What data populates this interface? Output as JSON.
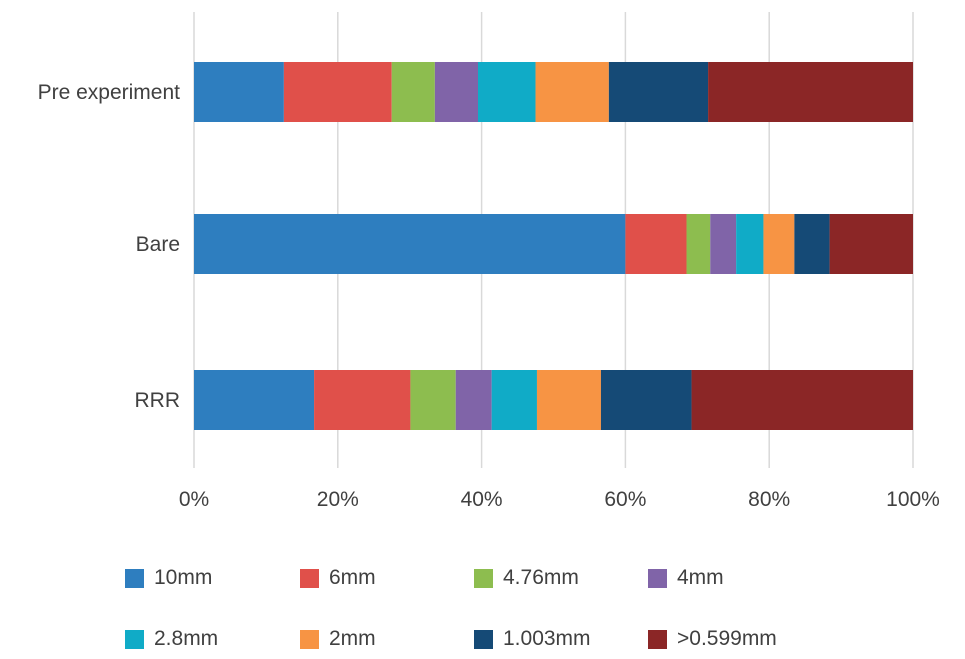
{
  "chart_data": {
    "type": "bar",
    "orientation": "horizontal",
    "stacked": "percent",
    "categories": [
      "Pre experiment",
      "Bare",
      "RRR"
    ],
    "series": [
      {
        "name": "10mm",
        "color": "#2E7EBF",
        "values": [
          12.5,
          60.0,
          16.7
        ]
      },
      {
        "name": "6mm",
        "color": "#E0504A",
        "values": [
          15.0,
          8.5,
          13.4
        ]
      },
      {
        "name": "4.76mm",
        "color": "#8DBD4F",
        "values": [
          6.0,
          3.3,
          6.3
        ]
      },
      {
        "name": "4mm",
        "color": "#8064A8",
        "values": [
          6.0,
          3.6,
          5.0
        ]
      },
      {
        "name": "2.8mm",
        "color": "#10ABC7",
        "values": [
          8.0,
          3.8,
          6.3
        ]
      },
      {
        "name": "2mm",
        "color": "#F79444",
        "values": [
          10.2,
          4.3,
          8.9
        ]
      },
      {
        "name": "1.003mm",
        "color": "#154A76",
        "values": [
          13.8,
          4.9,
          12.6
        ]
      },
      {
        "name": ">0.599mm",
        "color": "#8B2626",
        "values": [
          28.5,
          11.6,
          30.8
        ]
      }
    ],
    "xaxis": {
      "ticks": [
        "0%",
        "20%",
        "40%",
        "60%",
        "80%",
        "100%"
      ],
      "range": [
        0,
        100
      ]
    },
    "grid": "vertical",
    "legend": "bottom",
    "title": "",
    "xlabel": "",
    "ylabel": ""
  }
}
